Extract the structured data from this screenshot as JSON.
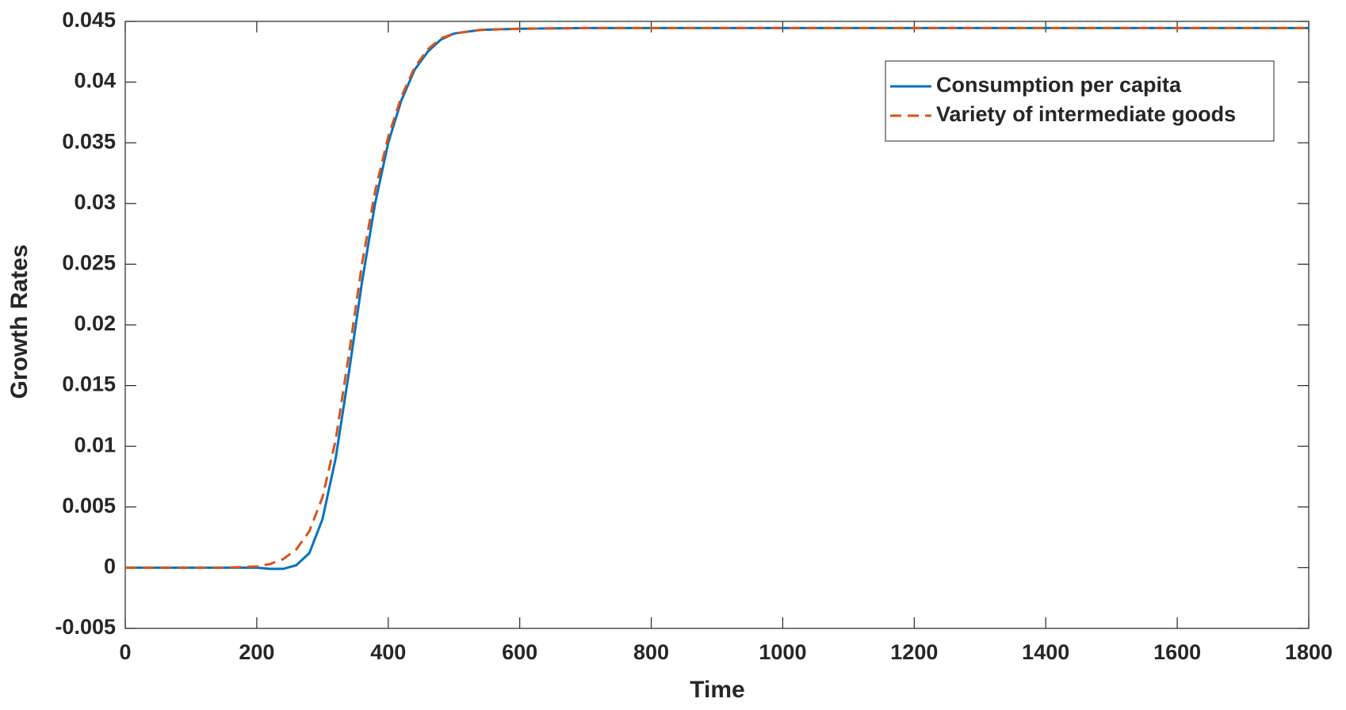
{
  "chart_data": {
    "type": "line",
    "xlabel": "Time",
    "ylabel": "Growth Rates",
    "x": [
      0,
      50,
      100,
      150,
      200,
      220,
      240,
      260,
      280,
      300,
      320,
      340,
      360,
      380,
      400,
      420,
      440,
      460,
      480,
      500,
      540,
      600,
      700,
      800,
      1000,
      1200,
      1400,
      1600,
      1800
    ],
    "series": [
      {
        "name": "Consumption per capita",
        "color": "#0072bd",
        "dash": "solid",
        "values": [
          0,
          0,
          0,
          0,
          0,
          -0.0001,
          -0.0001,
          0.0002,
          0.0012,
          0.004,
          0.009,
          0.016,
          0.0235,
          0.03,
          0.035,
          0.0385,
          0.041,
          0.0425,
          0.0435,
          0.044,
          0.0443,
          0.0444,
          0.04445,
          0.04445,
          0.04445,
          0.04445,
          0.04445,
          0.04445,
          0.04445
        ]
      },
      {
        "name": "Variety of intermediate goods",
        "color": "#d95319",
        "dash": "dashed",
        "values": [
          0,
          0,
          0,
          0,
          0.0001,
          0.0003,
          0.0007,
          0.0015,
          0.003,
          0.0058,
          0.0105,
          0.0175,
          0.025,
          0.031,
          0.0355,
          0.0388,
          0.0412,
          0.0427,
          0.0436,
          0.044,
          0.0443,
          0.0444,
          0.04445,
          0.04445,
          0.04445,
          0.04445,
          0.04445,
          0.04445,
          0.04445
        ]
      }
    ],
    "xlim": [
      0,
      1800
    ],
    "xticks": [
      0,
      200,
      400,
      600,
      800,
      1000,
      1200,
      1400,
      1600,
      1800
    ],
    "ylim": [
      -0.005,
      0.045
    ],
    "yticks": [
      -0.005,
      0,
      0.005,
      0.01,
      0.015,
      0.02,
      0.025,
      0.03,
      0.035,
      0.04,
      0.045
    ],
    "grid": false,
    "legend": "northeast"
  }
}
